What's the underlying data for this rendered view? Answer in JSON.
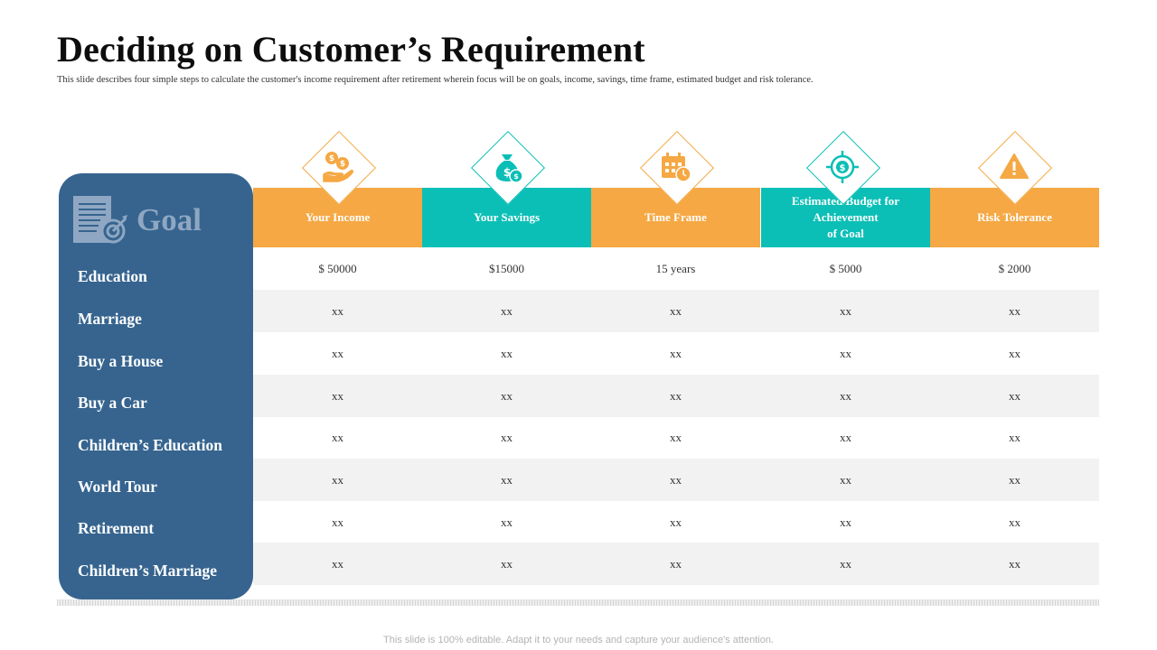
{
  "title": "Deciding on Customer’s Requirement",
  "subtitle": "This slide describes four simple steps to calculate the customer's  income requirement after retirement wherein focus will be on goals, income, savings, time frame, estimated budget and risk tolerance.",
  "goal_panel": {
    "heading": "Goal",
    "icon": "document-target-icon",
    "items": [
      "Education",
      "Marriage",
      "Buy a House",
      "Buy a Car",
      "Children’s Education",
      "World Tour",
      "Retirement",
      "Children’s Marriage"
    ]
  },
  "columns": [
    {
      "label": "Your Income",
      "icon": "income-hand-coins-icon",
      "color": "#f5a843"
    },
    {
      "label": "Your Savings",
      "icon": "money-bag-icon",
      "color": "#0bbfb6"
    },
    {
      "label": "Time Frame",
      "icon": "calendar-clock-icon",
      "color": "#f5a843"
    },
    {
      "label": "Estimated Budget for\nAchievement\nof Goal",
      "icon": "dollar-target-icon",
      "color": "#0bbfb6"
    },
    {
      "label": "Risk Tolerance",
      "icon": "warning-triangle-icon",
      "color": "#f5a843"
    }
  ],
  "rows": [
    [
      "$ 50000",
      "$15000",
      "15 years",
      "$ 5000",
      "$ 2000"
    ],
    [
      "xx",
      "xx",
      "xx",
      "xx",
      "xx"
    ],
    [
      "xx",
      "xx",
      "xx",
      "xx",
      "xx"
    ],
    [
      "xx",
      "xx",
      "xx",
      "xx",
      "xx"
    ],
    [
      "xx",
      "xx",
      "xx",
      "xx",
      "xx"
    ],
    [
      "xx",
      "xx",
      "xx",
      "xx",
      "xx"
    ],
    [
      "xx",
      "xx",
      "xx",
      "xx",
      "xx"
    ],
    [
      "xx",
      "xx",
      "xx",
      "xx",
      "xx"
    ]
  ],
  "footer": "This slide is 100% editable. Adapt it to your needs and capture your audience's attention.",
  "colors": {
    "goal_panel": "#36648f",
    "orange": "#f5a843",
    "teal": "#0bbfb6",
    "row_shade": "#f2f2f2"
  }
}
